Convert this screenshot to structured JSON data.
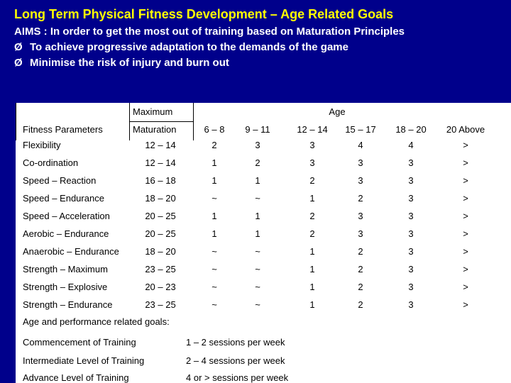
{
  "slide": {
    "title": "Long Term Physical Fitness Development – Age Related Goals",
    "aims": "AIMS : In order to get the most out of training  based on Maturation Principles",
    "bullet_mark": "Ø",
    "bullets": [
      "To achieve progressive adaptation to the demands of the game",
      "Minimise the risk of injury and burn out"
    ]
  },
  "table": {
    "header": {
      "maximum": "Maximum",
      "age": "Age",
      "fitness_parameters": "Fitness Parameters",
      "maturation": "Maturation",
      "age_groups": [
        "6 – 8",
        "9 – 11",
        "12 – 14",
        "15 – 17",
        "18 – 20",
        "20 Above"
      ]
    },
    "rows": [
      {
        "param": "Flexibility",
        "maturation": "12 – 14",
        "values": [
          "2",
          "3",
          "3",
          "4",
          "4",
          ">"
        ]
      },
      {
        "param": "Co-ordination",
        "maturation": "12 – 14",
        "values": [
          "1",
          "2",
          "3",
          "3",
          "3",
          ">"
        ]
      },
      {
        "param": "Speed – Reaction",
        "maturation": "16 – 18",
        "values": [
          "1",
          "1",
          "2",
          "3",
          "3",
          ">"
        ]
      },
      {
        "param": "Speed – Endurance",
        "maturation": "18 – 20",
        "values": [
          "~",
          "~",
          "1",
          "2",
          "3",
          ">"
        ]
      },
      {
        "param": "Speed – Acceleration",
        "maturation": "20 – 25",
        "values": [
          "1",
          "1",
          "2",
          "3",
          "3",
          ">"
        ]
      },
      {
        "param": "Aerobic – Endurance",
        "maturation": "20 – 25",
        "values": [
          "1",
          "1",
          "2",
          "3",
          "3",
          ">"
        ]
      },
      {
        "param": "Anaerobic – Endurance",
        "maturation": "18 – 20",
        "values": [
          "~",
          "~",
          "1",
          "2",
          "3",
          ">"
        ]
      },
      {
        "param": "Strength – Maximum",
        "maturation": "23 – 25",
        "values": [
          "~",
          "~",
          "1",
          "2",
          "3",
          ">"
        ]
      },
      {
        "param": "Strength – Explosive",
        "maturation": "20 – 23",
        "values": [
          "~",
          "~",
          "1",
          "2",
          "3",
          ">"
        ]
      },
      {
        "param": "Strength – Endurance",
        "maturation": "23 – 25",
        "values": [
          "~",
          "~",
          "1",
          "2",
          "3",
          ">"
        ]
      }
    ]
  },
  "goals": {
    "heading": "Age and performance related goals:",
    "items": [
      {
        "label": "Commencement of Training",
        "value": "1 – 2 sessions per week"
      },
      {
        "label": "Intermediate Level of Training",
        "value": "2 – 4 sessions per week"
      },
      {
        "label": "Advance Level of Training",
        "value": "4 or > sessions per week"
      }
    ]
  }
}
